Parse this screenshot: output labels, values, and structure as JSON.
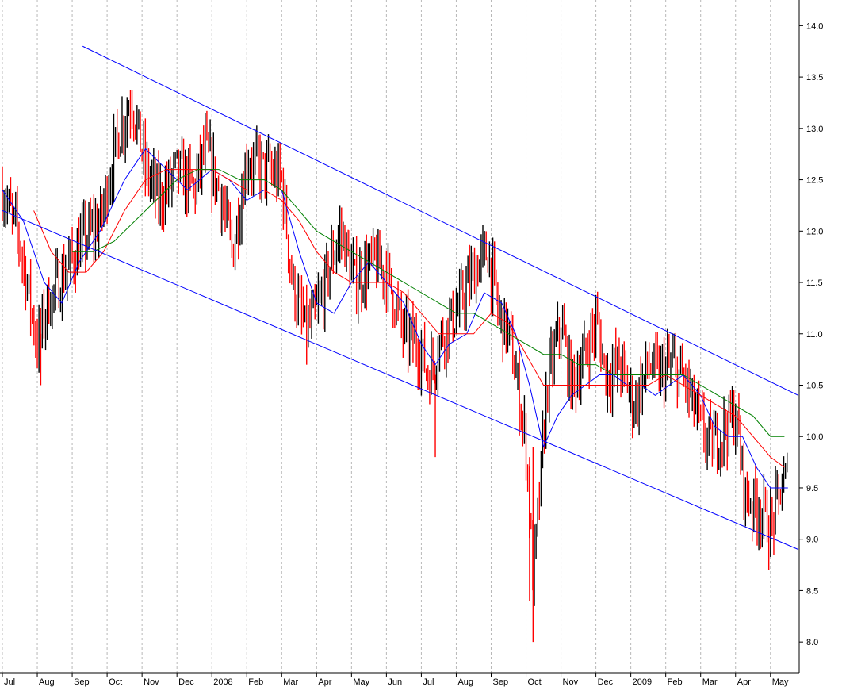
{
  "chart_data": {
    "type": "line",
    "title": "",
    "xlabel": "",
    "ylabel": "",
    "ylim": [
      7.7,
      14.25
    ],
    "y_ticks": [
      "14.0",
      "13.5",
      "13.0",
      "12.5",
      "12.0",
      "11.5",
      "11.0",
      "10.5",
      "10.0",
      "9.5",
      "9.0",
      "8.5",
      "8.0"
    ],
    "x_domain": [
      0,
      22.8
    ],
    "x_ticks": [
      {
        "label": "Jul",
        "pos": 0.0
      },
      {
        "label": "Aug",
        "pos": 1.0
      },
      {
        "label": "Sep",
        "pos": 2.0
      },
      {
        "label": "Oct",
        "pos": 3.0
      },
      {
        "label": "Nov",
        "pos": 4.0
      },
      {
        "label": "Dec",
        "pos": 5.0
      },
      {
        "label": "2008",
        "pos": 6.0
      },
      {
        "label": "Feb",
        "pos": 7.0
      },
      {
        "label": "Mar",
        "pos": 8.0
      },
      {
        "label": "Apr",
        "pos": 9.0
      },
      {
        "label": "May",
        "pos": 10.0
      },
      {
        "label": "Jun",
        "pos": 11.0
      },
      {
        "label": "Jul",
        "pos": 12.0
      },
      {
        "label": "Aug",
        "pos": 13.0
      },
      {
        "label": "Sep",
        "pos": 14.0
      },
      {
        "label": "Oct",
        "pos": 15.0
      },
      {
        "label": "Nov",
        "pos": 16.0
      },
      {
        "label": "Dec",
        "pos": 17.0
      },
      {
        "label": "2009",
        "pos": 18.0
      },
      {
        "label": "Feb",
        "pos": 19.0
      },
      {
        "label": "Mar",
        "pos": 20.0
      },
      {
        "label": "Apr",
        "pos": 21.0
      },
      {
        "label": "May",
        "pos": 22.0
      }
    ],
    "grid": {
      "vertical": true,
      "horizontal": false
    },
    "price_anchors": [
      [
        0.0,
        12.4
      ],
      [
        0.5,
        11.9
      ],
      [
        1.0,
        10.9
      ],
      [
        1.3,
        11.3
      ],
      [
        1.8,
        11.6
      ],
      [
        2.3,
        11.9
      ],
      [
        2.8,
        12.1
      ],
      [
        3.3,
        12.9
      ],
      [
        3.7,
        13.3
      ],
      [
        4.1,
        12.6
      ],
      [
        4.5,
        12.3
      ],
      [
        5.0,
        12.6
      ],
      [
        5.5,
        12.4
      ],
      [
        5.8,
        12.8
      ],
      [
        6.2,
        12.4
      ],
      [
        6.6,
        11.8
      ],
      [
        7.0,
        12.7
      ],
      [
        7.5,
        12.6
      ],
      [
        8.0,
        12.5
      ],
      [
        8.3,
        11.5
      ],
      [
        8.7,
        11.0
      ],
      [
        9.1,
        11.3
      ],
      [
        9.4,
        11.7
      ],
      [
        9.7,
        12.0
      ],
      [
        10.1,
        11.5
      ],
      [
        10.6,
        11.7
      ],
      [
        11.0,
        11.6
      ],
      [
        11.5,
        11.0
      ],
      [
        11.9,
        10.9
      ],
      [
        12.2,
        10.6
      ],
      [
        12.6,
        11.0
      ],
      [
        13.0,
        11.2
      ],
      [
        13.5,
        11.6
      ],
      [
        13.9,
        11.8
      ],
      [
        14.2,
        11.2
      ],
      [
        14.5,
        11.0
      ],
      [
        14.8,
        10.4
      ],
      [
        15.0,
        9.9
      ],
      [
        15.2,
        8.6
      ],
      [
        15.4,
        9.5
      ],
      [
        15.6,
        10.5
      ],
      [
        16.0,
        11.1
      ],
      [
        16.3,
        10.5
      ],
      [
        16.7,
        10.8
      ],
      [
        17.0,
        11.1
      ],
      [
        17.3,
        10.6
      ],
      [
        17.7,
        10.7
      ],
      [
        18.1,
        10.3
      ],
      [
        18.5,
        10.7
      ],
      [
        18.8,
        10.6
      ],
      [
        19.2,
        10.7
      ],
      [
        19.6,
        10.5
      ],
      [
        20.0,
        10.1
      ],
      [
        20.3,
        9.9
      ],
      [
        20.7,
        10.1
      ],
      [
        21.0,
        10.2
      ],
      [
        21.3,
        9.4
      ],
      [
        21.7,
        9.3
      ],
      [
        22.0,
        9.1
      ],
      [
        22.3,
        9.5
      ],
      [
        22.5,
        9.6
      ]
    ],
    "series": [
      {
        "color": "#0000ff",
        "values": [
          [
            0.0,
            12.4
          ],
          [
            0.6,
            12.1
          ],
          [
            1.2,
            11.5
          ],
          [
            1.7,
            11.3
          ],
          [
            2.2,
            11.7
          ],
          [
            2.8,
            12.0
          ],
          [
            3.5,
            12.5
          ],
          [
            4.1,
            12.8
          ],
          [
            4.7,
            12.6
          ],
          [
            5.3,
            12.4
          ],
          [
            6.0,
            12.6
          ],
          [
            6.5,
            12.5
          ],
          [
            7.0,
            12.3
          ],
          [
            7.5,
            12.4
          ],
          [
            8.0,
            12.4
          ],
          [
            8.5,
            11.8
          ],
          [
            9.0,
            11.3
          ],
          [
            9.5,
            11.2
          ],
          [
            10.0,
            11.5
          ],
          [
            10.5,
            11.7
          ],
          [
            11.0,
            11.5
          ],
          [
            11.5,
            11.3
          ],
          [
            12.0,
            10.9
          ],
          [
            12.4,
            10.7
          ],
          [
            12.8,
            10.9
          ],
          [
            13.3,
            11.0
          ],
          [
            13.8,
            11.4
          ],
          [
            14.3,
            11.3
          ],
          [
            14.7,
            11.0
          ],
          [
            15.1,
            10.5
          ],
          [
            15.5,
            9.9
          ],
          [
            15.9,
            10.2
          ],
          [
            16.3,
            10.4
          ],
          [
            16.7,
            10.5
          ],
          [
            17.1,
            10.6
          ],
          [
            17.5,
            10.6
          ],
          [
            17.9,
            10.5
          ],
          [
            18.3,
            10.5
          ],
          [
            18.7,
            10.4
          ],
          [
            19.1,
            10.5
          ],
          [
            19.5,
            10.6
          ],
          [
            20.0,
            10.4
          ],
          [
            20.4,
            10.1
          ],
          [
            20.8,
            10.0
          ],
          [
            21.2,
            10.0
          ],
          [
            21.6,
            9.7
          ],
          [
            22.0,
            9.5
          ],
          [
            22.3,
            9.5
          ],
          [
            22.5,
            9.5
          ]
        ]
      },
      {
        "color": "#ff0000",
        "values": [
          [
            0.9,
            12.2
          ],
          [
            1.4,
            11.8
          ],
          [
            1.9,
            11.6
          ],
          [
            2.4,
            11.6
          ],
          [
            2.9,
            11.8
          ],
          [
            3.5,
            12.2
          ],
          [
            4.1,
            12.5
          ],
          [
            4.7,
            12.6
          ],
          [
            5.3,
            12.6
          ],
          [
            6.0,
            12.6
          ],
          [
            6.5,
            12.5
          ],
          [
            7.0,
            12.4
          ],
          [
            7.5,
            12.4
          ],
          [
            8.0,
            12.3
          ],
          [
            8.5,
            12.1
          ],
          [
            9.0,
            11.8
          ],
          [
            9.5,
            11.6
          ],
          [
            10.0,
            11.5
          ],
          [
            10.5,
            11.5
          ],
          [
            11.0,
            11.5
          ],
          [
            11.5,
            11.4
          ],
          [
            12.0,
            11.2
          ],
          [
            12.5,
            11.0
          ],
          [
            13.0,
            11.0
          ],
          [
            13.5,
            11.0
          ],
          [
            14.0,
            11.2
          ],
          [
            14.5,
            11.1
          ],
          [
            15.0,
            10.8
          ],
          [
            15.5,
            10.5
          ],
          [
            16.0,
            10.5
          ],
          [
            16.5,
            10.5
          ],
          [
            17.0,
            10.5
          ],
          [
            17.5,
            10.5
          ],
          [
            18.0,
            10.5
          ],
          [
            18.5,
            10.5
          ],
          [
            19.0,
            10.6
          ],
          [
            19.5,
            10.5
          ],
          [
            20.0,
            10.4
          ],
          [
            20.5,
            10.3
          ],
          [
            21.0,
            10.2
          ],
          [
            21.5,
            10.0
          ],
          [
            22.0,
            9.8
          ],
          [
            22.4,
            9.7
          ]
        ]
      },
      {
        "color": "#008000",
        "values": [
          [
            2.0,
            11.8
          ],
          [
            2.6,
            11.8
          ],
          [
            3.2,
            11.9
          ],
          [
            3.8,
            12.1
          ],
          [
            4.4,
            12.3
          ],
          [
            5.0,
            12.5
          ],
          [
            5.6,
            12.6
          ],
          [
            6.2,
            12.6
          ],
          [
            6.8,
            12.5
          ],
          [
            7.5,
            12.5
          ],
          [
            8.0,
            12.4
          ],
          [
            8.5,
            12.2
          ],
          [
            9.0,
            12.0
          ],
          [
            9.5,
            11.9
          ],
          [
            10.0,
            11.8
          ],
          [
            10.5,
            11.7
          ],
          [
            11.0,
            11.6
          ],
          [
            11.5,
            11.5
          ],
          [
            12.0,
            11.4
          ],
          [
            12.5,
            11.3
          ],
          [
            13.0,
            11.2
          ],
          [
            13.5,
            11.2
          ],
          [
            14.0,
            11.1
          ],
          [
            14.5,
            11.0
          ],
          [
            15.0,
            10.9
          ],
          [
            15.5,
            10.8
          ],
          [
            16.0,
            10.8
          ],
          [
            16.5,
            10.7
          ],
          [
            17.0,
            10.7
          ],
          [
            17.5,
            10.6
          ],
          [
            18.0,
            10.6
          ],
          [
            18.5,
            10.6
          ],
          [
            19.0,
            10.6
          ],
          [
            19.5,
            10.6
          ],
          [
            20.0,
            10.5
          ],
          [
            20.5,
            10.4
          ],
          [
            21.0,
            10.3
          ],
          [
            21.5,
            10.2
          ],
          [
            22.0,
            10.0
          ],
          [
            22.4,
            10.0
          ]
        ]
      }
    ],
    "trend_channel": {
      "color": "#0000ff",
      "lines": [
        {
          "from": [
            2.3,
            13.8
          ],
          "to": [
            22.8,
            10.4
          ]
        },
        {
          "from": [
            0.0,
            12.2
          ],
          "to": [
            22.8,
            8.9
          ]
        }
      ]
    },
    "colors": {
      "background": "#ffffff",
      "grid": "#b8b8b8",
      "up_bar": "#000000",
      "down_bar": "#ff0000",
      "axis": "#000000"
    }
  }
}
